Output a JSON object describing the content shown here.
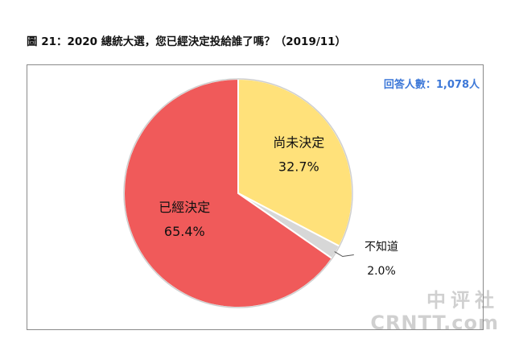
{
  "title": "圖 21：2020 總統大選，您已經決定投給誰了嗎？（2019/11）",
  "respondents": "回答人數：1,078人",
  "watermark": {
    "line1": "中评社",
    "line2": "CRNTT.com"
  },
  "colors": {
    "decided": "#f05a5a",
    "undecided": "#ffe17a",
    "unknown": "#d7d7d7"
  },
  "chart_data": {
    "type": "pie",
    "title": "圖 21：2020 總統大選，您已經決定投給誰了嗎？（2019/11）",
    "slices": [
      {
        "label": "尚未決定",
        "value": 32.7,
        "value_label": "32.7%"
      },
      {
        "label": "不知道",
        "value": 2.0,
        "value_label": "2.0%"
      },
      {
        "label": "已經決定",
        "value": 65.4,
        "value_label": "65.4%"
      }
    ],
    "start_angle": "12 o'clock",
    "direction": "clockwise",
    "legend": "none"
  }
}
